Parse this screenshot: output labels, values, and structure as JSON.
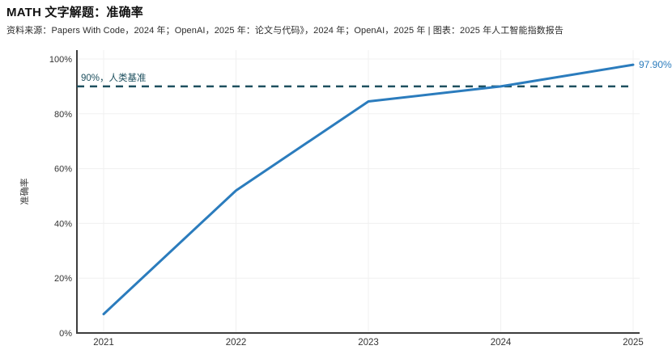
{
  "header": {
    "title": "MATH 文字解题：准确率",
    "source": "资料来源：Papers With Code，2024 年；OpenAI，2025 年：论文与代码》，2024 年；OpenAI，2025 年 | 图表：2025 年人工智能指数报告"
  },
  "chart_data": {
    "type": "line",
    "title": "MATH 文字解题：准确率",
    "xlabel": "",
    "ylabel": "准确率",
    "x": [
      2021,
      2022,
      2023,
      2024,
      2025
    ],
    "values": [
      6.9,
      52,
      84.5,
      90,
      97.9
    ],
    "ylim": [
      0,
      100
    ],
    "yticks": [
      0,
      20,
      40,
      60,
      80,
      100
    ],
    "ytick_suffix": "%",
    "grid": true,
    "legend": "none",
    "end_label": "97.90%",
    "reference_line": {
      "value": 90,
      "label": "90%，人类基准",
      "style": "dashed",
      "color": "#1e505f"
    },
    "colors": {
      "line": "#2b7cbd",
      "axis": "#3d3d3d",
      "tick": "#333333",
      "grid": "#f0f0f0"
    }
  }
}
